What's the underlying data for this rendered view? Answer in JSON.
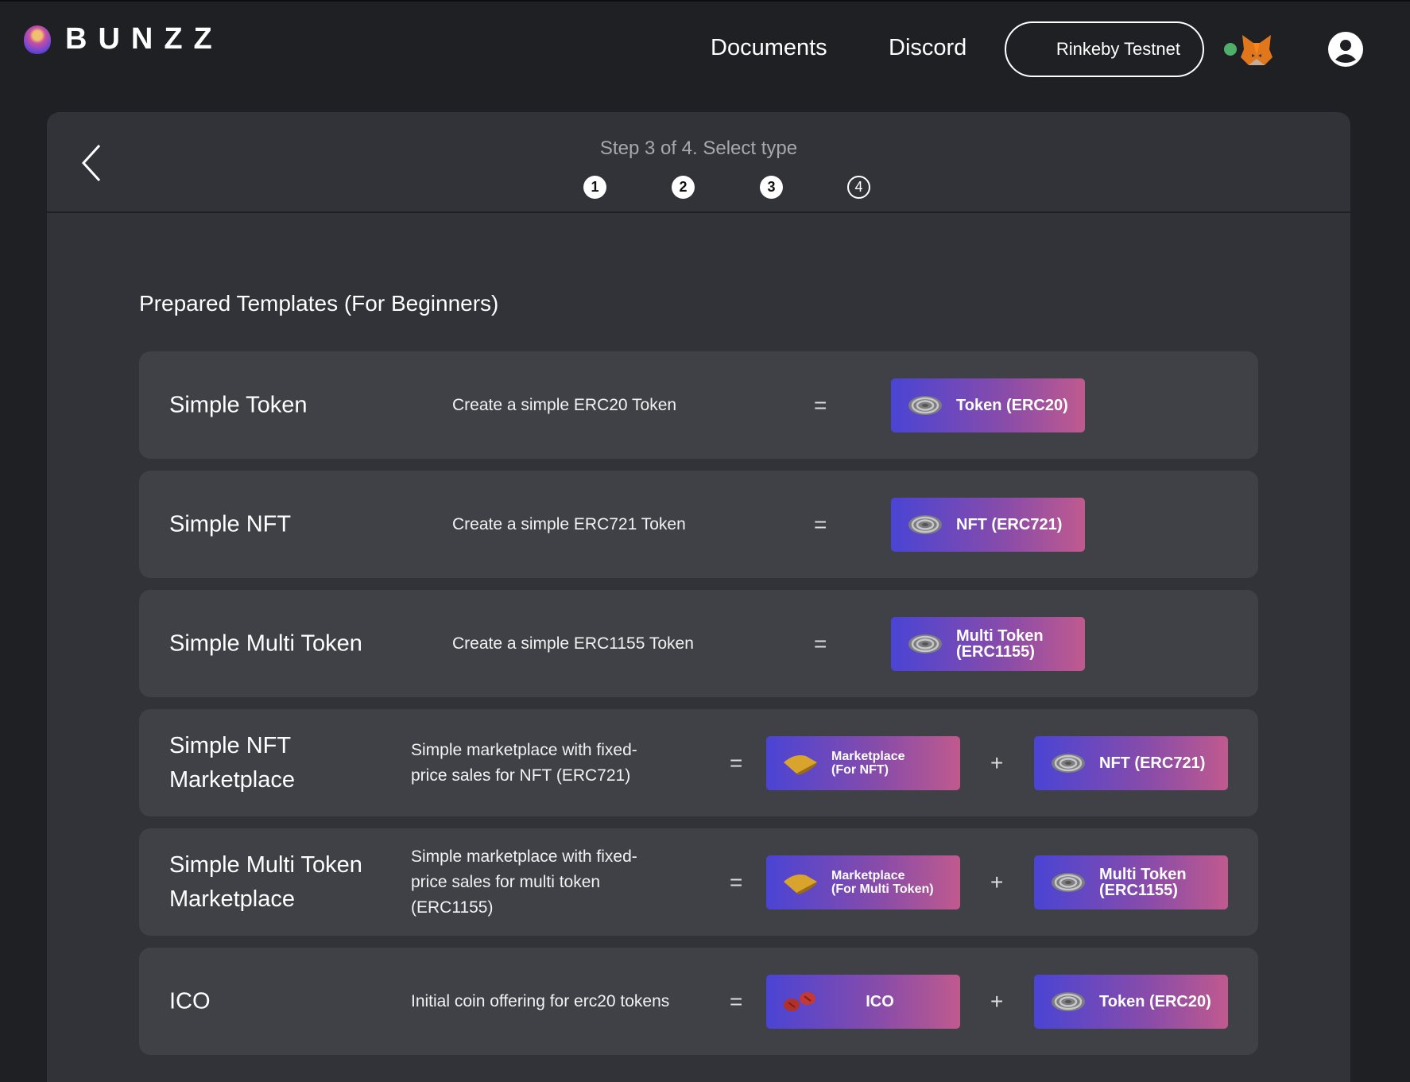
{
  "header": {
    "logo_text": "BUNZZ",
    "nav": [
      "Documents",
      "Discord"
    ],
    "network_button": "Rinkeby Testnet",
    "connection_status_color": "#4fae6a"
  },
  "wizard": {
    "step_title": "Step 3 of 4. Select type",
    "steps": [
      {
        "label": "1",
        "state": "done"
      },
      {
        "label": "2",
        "state": "done"
      },
      {
        "label": "3",
        "state": "current"
      },
      {
        "label": "4",
        "state": "todo"
      }
    ]
  },
  "section_title": "Prepared Templates (For Beginners)",
  "colors": {
    "badge_start": "#4a44d4",
    "badge_end": "#c05a8e",
    "row_bg": "#404146",
    "panel_bg": "#323338"
  },
  "templates": [
    {
      "title": "Simple Token",
      "description": "Create a simple ERC20 Token",
      "equals": "=",
      "modules": [
        {
          "label": "Token (ERC20)",
          "icon": "rings-icon"
        }
      ]
    },
    {
      "title": "Simple NFT",
      "description": "Create a simple ERC721 Token",
      "equals": "=",
      "modules": [
        {
          "label": "NFT (ERC721)",
          "icon": "rings-icon"
        }
      ]
    },
    {
      "title": "Simple Multi Token",
      "description": "Create a simple ERC1155 Token",
      "equals": "=",
      "modules": [
        {
          "label": "Multi Token\n(ERC1155)",
          "icon": "rings-icon"
        }
      ]
    },
    {
      "title": "Simple NFT Marketplace",
      "description": "Simple marketplace with fixed-price sales for NFT (ERC721)",
      "equals": "=",
      "plus": "+",
      "modules": [
        {
          "label": "Marketplace\n(For NFT)",
          "icon": "marketplace-icon",
          "small": true
        },
        {
          "label": "NFT (ERC721)",
          "icon": "rings-icon"
        }
      ]
    },
    {
      "title": "Simple Multi Token Marketplace",
      "description": "Simple marketplace with fixed-price sales for multi token (ERC1155)",
      "equals": "=",
      "plus": "+",
      "modules": [
        {
          "label": "Marketplace\n(For Multi Token)",
          "icon": "marketplace-icon",
          "small": true
        },
        {
          "label": "Multi Token\n(ERC1155)",
          "icon": "rings-icon"
        }
      ]
    },
    {
      "title": "ICO",
      "description": "Initial coin offering for erc20 tokens",
      "equals": "=",
      "plus": "+",
      "modules": [
        {
          "label": "ICO",
          "icon": "coins-icon",
          "center": true
        },
        {
          "label": "Token (ERC20)",
          "icon": "rings-icon"
        }
      ]
    }
  ]
}
